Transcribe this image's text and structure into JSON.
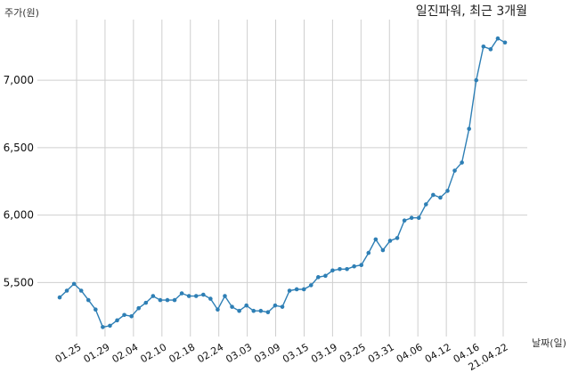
{
  "chart_data": {
    "type": "line",
    "title": "일진파워, 최근 3개월",
    "xlabel": "날짜(일)",
    "ylabel": "주가(원)",
    "ylim": [
      5100,
      7450
    ],
    "grid": true,
    "color": "#2e7fb5",
    "x_ticks": [
      "01.25",
      "01.29",
      "02.04",
      "02.10",
      "02.18",
      "02.24",
      "03.03",
      "03.09",
      "03.15",
      "03.19",
      "03.25",
      "03.31",
      "04.06",
      "04.12",
      "04.16",
      "21.04.22"
    ],
    "y_ticks": [
      {
        "value": 5500,
        "label": "5,500"
      },
      {
        "value": 6000,
        "label": "6,000"
      },
      {
        "value": 6500,
        "label": "6,500"
      },
      {
        "value": 7000,
        "label": "7,000"
      }
    ],
    "values": [
      5390,
      5440,
      5490,
      5440,
      5370,
      5300,
      5170,
      5180,
      5220,
      5260,
      5250,
      5310,
      5350,
      5400,
      5370,
      5370,
      5370,
      5420,
      5400,
      5400,
      5410,
      5380,
      5300,
      5400,
      5320,
      5290,
      5330,
      5290,
      5290,
      5280,
      5330,
      5320,
      5440,
      5450,
      5450,
      5480,
      5540,
      5550,
      5590,
      5600,
      5600,
      5620,
      5630,
      5720,
      5820,
      5740,
      5810,
      5830,
      5960,
      5980,
      5980,
      6080,
      6150,
      6130,
      6180,
      6330,
      6390,
      6640,
      7000,
      7250,
      7230,
      7310,
      7280
    ]
  }
}
